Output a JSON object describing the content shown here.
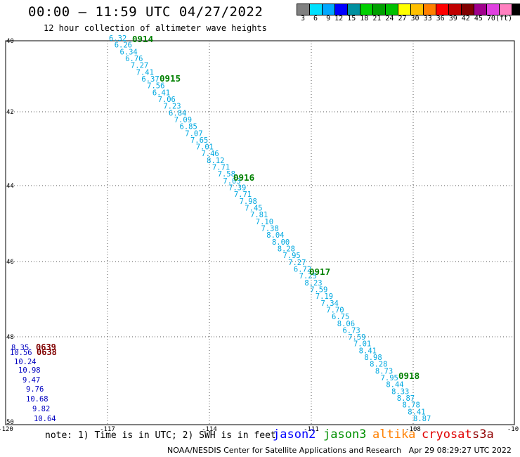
{
  "header": {
    "title": "00:00 — 11:59 UTC 04/27/2022",
    "subtitle": "12 hour collection of altimeter wave heights"
  },
  "colorbar": {
    "colors": [
      "#808080",
      "#00e0ff",
      "#00a8ff",
      "#0000ff",
      "#0090a0",
      "#00d000",
      "#00a000",
      "#00c000",
      "#ffff00",
      "#ffc000",
      "#ff8000",
      "#ff0000",
      "#c00000",
      "#800000",
      "#a0008c",
      "#e040e0",
      "#ff80c0",
      "#000000"
    ],
    "labels": "3  6  9 12 15 18 21 24 27 30 33 36 39 42 45 70",
    "unit": "(ft)"
  },
  "axes": {
    "lon_ticks": [
      "-120",
      "-117",
      "-114",
      "-111",
      "-108",
      "-10"
    ],
    "lat_ticks": [
      "40",
      "42",
      "44",
      "46",
      "48",
      "50"
    ]
  },
  "tracks": {
    "jason3_color": "#00a8e0",
    "time_color": "#008000",
    "jason3_values": [
      "6.32",
      "6.26",
      "6.34",
      "6.76",
      "7.27",
      "7.41",
      "6.37",
      "7.56",
      "6.41",
      "7.06",
      "7.23",
      "6.84",
      "7.09",
      "6.85",
      "7.07",
      "7.65",
      "7.01",
      "7.46",
      "8.12",
      "7.71",
      "7.58",
      "7.03",
      "7.39",
      "7.71",
      "7.98",
      "7.45",
      "7.81",
      "7.10",
      "7.38",
      "8.04",
      "8.00",
      "8.28",
      "7.95",
      "7.27",
      "6.72",
      "7.25",
      "8.23",
      "7.59",
      "7.19",
      "7.34",
      "7.70",
      "6.75",
      "8.06",
      "6.73",
      "7.59",
      "7.01",
      "8.41",
      "8.98",
      "8.28",
      "8.73",
      "7.95",
      "8.44",
      "8.33",
      "8.87",
      "8.78",
      "8.41",
      "8.87"
    ],
    "jason3_times": [
      "0914",
      "0915",
      "0916",
      "0917",
      "0918"
    ],
    "jason2_color": "#0000c0",
    "jason2_values": [
      "8.35",
      "10.56",
      "10.24",
      "10.98",
      "9.47",
      "9.76",
      "10.68",
      "9.82",
      "10.64"
    ],
    "cryosat_color": "#800000",
    "cryosat_times": [
      "0639",
      "0638"
    ]
  },
  "note": "note: 1) Time is in UTC; 2) SWH is in feet",
  "legend": [
    {
      "label": "jason2",
      "color": "#0000ff"
    },
    {
      "label": "jason3",
      "color": "#009000"
    },
    {
      "label": "altika",
      "color": "#ff8000"
    },
    {
      "label": "cryosat",
      "color": "#e00000"
    },
    {
      "label": "s3a",
      "color": "#900000"
    }
  ],
  "footer": "NOAA/NESDIS Center for Satellite Applications and Research   Apr 29 08:29:27 UTC 2022"
}
